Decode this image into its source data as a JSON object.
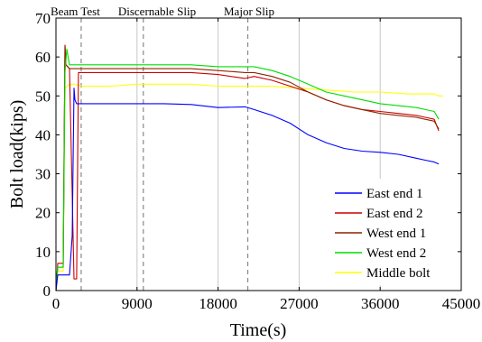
{
  "chart_data": {
    "type": "line",
    "xlabel": "Time(s)",
    "ylabel": "Bolt load(kips)",
    "xlim": [
      0,
      45000
    ],
    "ylim": [
      0,
      70
    ],
    "xticks": [
      0,
      9000,
      18000,
      27000,
      36000,
      45000
    ],
    "yticks": [
      0,
      10,
      20,
      30,
      40,
      50,
      60,
      70
    ],
    "grid": "vertical",
    "legend_position": "bottom-right",
    "annotations": [
      {
        "label": "Beam Test",
        "x": 2800
      },
      {
        "label": "Discernable Slip",
        "x": 9700
      },
      {
        "label": "Major Slip",
        "x": 21300
      }
    ],
    "series": [
      {
        "name": "East end 1",
        "color": "#0000ff",
        "x": [
          0,
          200,
          500,
          1000,
          1500,
          1800,
          2000,
          2100,
          2300,
          2600,
          3000,
          6000,
          9000,
          12000,
          15000,
          18000,
          21000,
          22000,
          24000,
          26000,
          28000,
          30000,
          32000,
          34000,
          36000,
          38000,
          40000,
          41000,
          42000,
          42500
        ],
        "y": [
          0,
          4,
          4,
          4,
          4,
          14,
          52,
          49,
          48,
          48,
          48,
          48,
          48,
          48,
          47.8,
          47,
          47.2,
          46.5,
          45,
          43,
          40,
          38,
          36.5,
          35.8,
          35.5,
          35,
          34,
          33.5,
          33,
          32.5
        ]
      },
      {
        "name": "East end 2",
        "color": "#cc0000",
        "x": [
          0,
          200,
          500,
          800,
          1000,
          1100,
          1500,
          2000,
          2300,
          2500,
          2700,
          3000,
          6000,
          9000,
          12000,
          15000,
          18000,
          21000,
          22000,
          24000,
          26000,
          28000,
          30000,
          32000,
          34000,
          36000,
          38000,
          40000,
          41000,
          42000,
          42500
        ],
        "y": [
          0,
          7,
          7,
          7,
          63,
          58,
          57,
          3,
          3,
          56,
          56,
          56,
          56,
          56,
          56,
          56,
          55.5,
          54.5,
          55,
          54,
          52.5,
          51,
          49,
          47.5,
          46.5,
          46,
          45.5,
          45,
          44.5,
          44,
          41
        ]
      },
      {
        "name": "West end 1",
        "color": "#8b2500",
        "x": [
          0,
          200,
          500,
          800,
          1000,
          1100,
          1500,
          2000,
          3000,
          6000,
          9000,
          12000,
          15000,
          18000,
          21000,
          22000,
          24000,
          26000,
          28000,
          30000,
          32000,
          34000,
          36000,
          38000,
          40000,
          41000,
          42000,
          42500
        ],
        "y": [
          0,
          6,
          6,
          6,
          63,
          58,
          57,
          57,
          57,
          57,
          57,
          57,
          57,
          56.5,
          56,
          56,
          55,
          53.5,
          51,
          49,
          47.5,
          46.5,
          45.5,
          45,
          44.5,
          44,
          43.5,
          41.5
        ]
      },
      {
        "name": "West end 2",
        "color": "#00dd00",
        "x": [
          0,
          200,
          500,
          800,
          1000,
          1200,
          1500,
          2000,
          3000,
          6000,
          9000,
          12000,
          15000,
          18000,
          21000,
          22000,
          24000,
          26000,
          28000,
          30000,
          32000,
          34000,
          36000,
          38000,
          40000,
          41000,
          42000,
          42500
        ],
        "y": [
          0,
          6,
          6,
          6,
          56,
          62,
          58,
          58,
          58,
          58,
          58,
          58,
          58,
          57.5,
          57.5,
          57.5,
          56.5,
          55,
          53,
          51,
          50,
          49,
          48,
          47.5,
          47,
          46.5,
          46,
          44
        ]
      },
      {
        "name": "Middle bolt",
        "color": "#ffff00",
        "x": [
          0,
          200,
          500,
          800,
          1000,
          1500,
          2000,
          3000,
          6000,
          9000,
          12000,
          15000,
          18000,
          21000,
          24000,
          27000,
          30000,
          33000,
          36000,
          39000,
          42000,
          42500,
          43000
        ],
        "y": [
          0,
          5,
          5,
          5,
          52,
          53,
          53,
          52.5,
          52.5,
          53,
          53,
          53,
          52.5,
          52.5,
          52.5,
          52,
          51.5,
          51,
          51,
          50.5,
          50.5,
          50,
          50
        ]
      }
    ]
  }
}
